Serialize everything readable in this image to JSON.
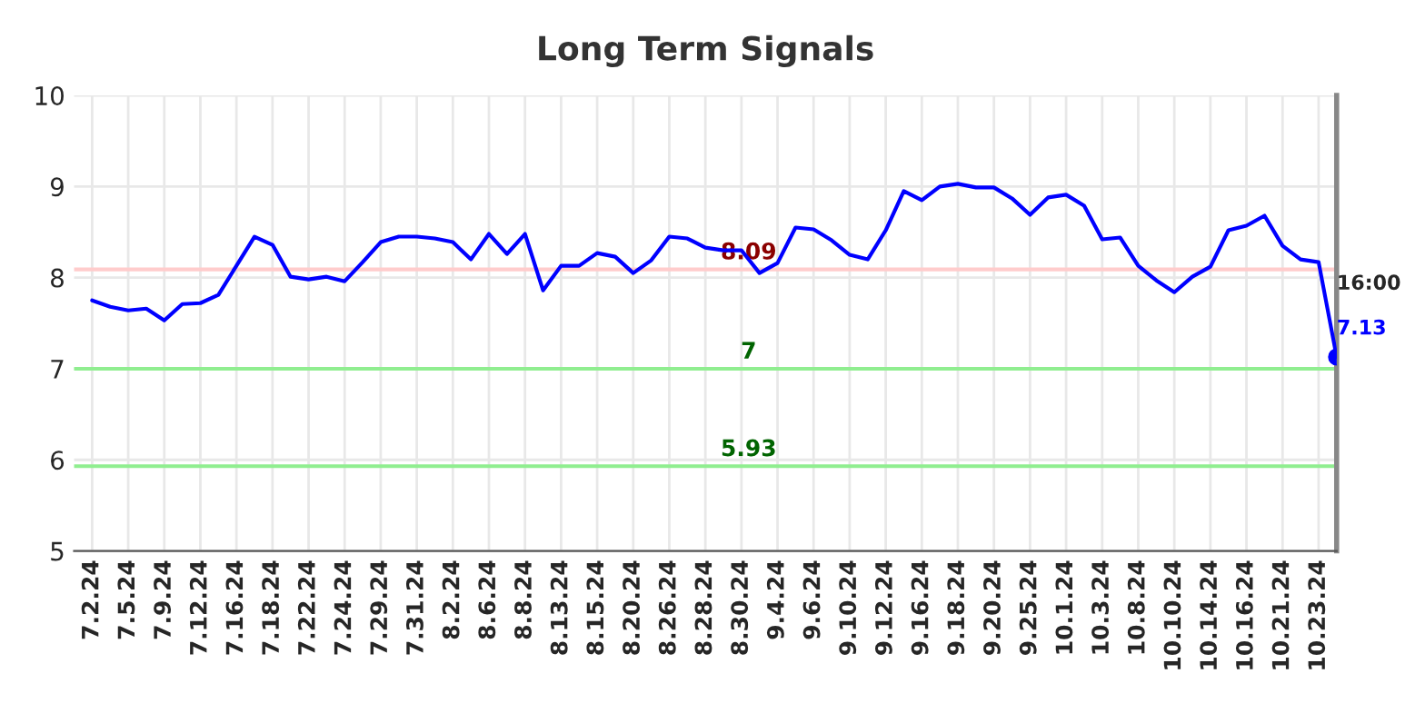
{
  "chart_data": {
    "type": "line",
    "title": "Long Term Signals",
    "categories": [
      "7.2.24",
      null,
      "7.5.24",
      null,
      "7.9.24",
      null,
      "7.12.24",
      null,
      "7.16.24",
      null,
      "7.18.24",
      null,
      "7.22.24",
      null,
      "7.24.24",
      null,
      "7.29.24",
      null,
      "7.31.24",
      null,
      "8.2.24",
      null,
      "8.6.24",
      null,
      "8.8.24",
      null,
      "8.13.24",
      null,
      "8.15.24",
      null,
      "8.20.24",
      null,
      "8.26.24",
      null,
      "8.28.24",
      null,
      "8.30.24",
      null,
      "9.4.24",
      null,
      "9.6.24",
      null,
      "9.10.24",
      null,
      "9.12.24",
      null,
      "9.16.24",
      null,
      "9.18.24",
      null,
      "9.20.24",
      null,
      "9.25.24",
      null,
      "10.1.24",
      null,
      "10.3.24",
      null,
      "10.8.24",
      null,
      "10.10.24",
      null,
      "10.14.24",
      null,
      "10.16.24",
      null,
      "10.21.24",
      null,
      "10.23.24",
      null
    ],
    "series": [
      {
        "color": "#0000ff",
        "values": [
          7.75,
          7.68,
          7.64,
          7.66,
          7.53,
          7.71,
          7.72,
          7.81,
          8.13,
          8.45,
          8.36,
          8.01,
          7.98,
          8.01,
          7.96,
          8.17,
          8.39,
          8.45,
          8.45,
          8.43,
          8.39,
          8.2,
          8.48,
          8.26,
          8.48,
          7.86,
          8.13,
          8.13,
          8.27,
          8.23,
          8.05,
          8.19,
          8.45,
          8.43,
          8.33,
          8.3,
          8.3,
          8.05,
          8.16,
          8.55,
          8.53,
          8.41,
          8.25,
          8.2,
          8.52,
          8.95,
          8.85,
          9.0,
          9.03,
          8.99,
          8.99,
          8.87,
          8.69,
          8.88,
          8.91,
          8.79,
          8.42,
          8.44,
          8.13,
          7.97,
          7.84,
          8.01,
          8.12,
          8.52,
          8.57,
          8.68,
          8.35,
          8.2,
          8.17,
          7.13
        ]
      },
      {
        "type": "scatter",
        "color": "#0000ff",
        "marker": "circle",
        "values": [
          null,
          null,
          null,
          null,
          null,
          null,
          null,
          null,
          null,
          null,
          null,
          null,
          null,
          null,
          null,
          null,
          null,
          null,
          null,
          null,
          null,
          null,
          null,
          null,
          null,
          null,
          null,
          null,
          null,
          null,
          null,
          null,
          null,
          null,
          null,
          null,
          null,
          null,
          null,
          null,
          null,
          null,
          null,
          null,
          null,
          null,
          null,
          null,
          null,
          null,
          null,
          null,
          null,
          null,
          null,
          null,
          null,
          null,
          null,
          null,
          null,
          null,
          null,
          null,
          null,
          null,
          null,
          null,
          null,
          7.13
        ],
        "value_labels": [
          null,
          null,
          null,
          null,
          null,
          null,
          null,
          null,
          null,
          null,
          null,
          null,
          null,
          null,
          null,
          null,
          null,
          null,
          null,
          null,
          null,
          null,
          null,
          null,
          null,
          null,
          null,
          null,
          null,
          null,
          null,
          null,
          null,
          null,
          null,
          null,
          null,
          null,
          null,
          null,
          null,
          null,
          null,
          null,
          null,
          null,
          null,
          null,
          null,
          null,
          null,
          null,
          null,
          null,
          null,
          null,
          null,
          null,
          null,
          null,
          null,
          null,
          null,
          null,
          null,
          null,
          null,
          null,
          null,
          "7.13"
        ]
      }
    ],
    "annotations": [
      "16:00"
    ],
    "ref_lines": [
      {
        "axis": "y",
        "value": 8.09,
        "label": "8.09",
        "color": "#ffcccc"
      },
      {
        "axis": "y",
        "value": 7,
        "label": "7",
        "color": "#90ee90"
      },
      {
        "axis": "y",
        "value": 5.93,
        "label": "5.93",
        "color": "#90ee90"
      }
    ],
    "ylim": [
      5,
      10
    ],
    "yticks": [
      5,
      6,
      7,
      8,
      9,
      10
    ],
    "grid": true,
    "marker": "none",
    "line_style": "solid"
  }
}
